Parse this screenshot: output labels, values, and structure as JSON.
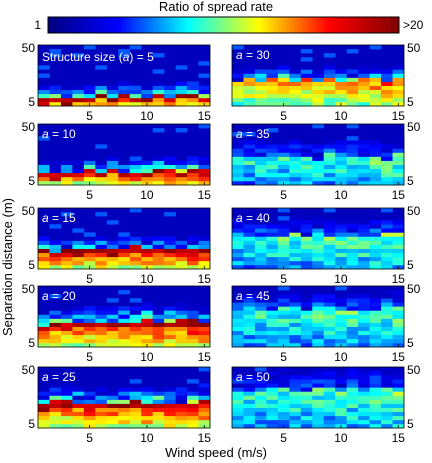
{
  "chart_data": {
    "type": "heatmap",
    "colorbar": {
      "title": "Ratio of spread rate",
      "min_label": "1",
      "max_label": ">20",
      "min": 1,
      "max": 20,
      "colormap": "jet",
      "colors": [
        "#00007f",
        "#0000ff",
        "#00ffff",
        "#ffff00",
        "#ff0000",
        "#7f0000"
      ]
    },
    "xlabel": "Wind speed (m/s)",
    "ylabel": "Separation distance (m)",
    "x_range": [
      0.5,
      15.5
    ],
    "y_range": [
      5,
      50
    ],
    "x_ticks": [
      "5",
      "10",
      "15"
    ],
    "y_ticks": [
      "5",
      "50"
    ],
    "panels": [
      {
        "label_prefix": "Structure size (",
        "label_var": "a",
        "label_suffix": ") = 5",
        "a": 5,
        "ramp": "red",
        "front_rows": 1.6,
        "spread_rows": 3
      },
      {
        "label_prefix": "",
        "label_var": "a",
        "label_suffix": " = 10",
        "a": 10,
        "ramp": "red",
        "front_rows": 2.6,
        "spread_rows": 3
      },
      {
        "label_prefix": "",
        "label_var": "a",
        "label_suffix": " = 15",
        "a": 15,
        "ramp": "red",
        "front_rows": 4.2,
        "spread_rows": 3
      },
      {
        "label_prefix": "",
        "label_var": "a",
        "label_suffix": " = 20",
        "a": 20,
        "ramp": "red",
        "front_rows": 5.2,
        "spread_rows": 4
      },
      {
        "label_prefix": "",
        "label_var": "a",
        "label_suffix": " = 25",
        "a": 25,
        "ramp": "red",
        "front_rows": 5.6,
        "spread_rows": 4
      },
      {
        "label_prefix": "",
        "label_var": "a",
        "label_suffix": " = 30",
        "a": 30,
        "ramp": "yellow",
        "front_rows": 5.6,
        "spread_rows": 3
      },
      {
        "label_prefix": "",
        "label_var": "a",
        "label_suffix": " = 35",
        "a": 35,
        "ramp": "cyan",
        "front_rows": 6,
        "spread_rows": 4
      },
      {
        "label_prefix": "",
        "label_var": "a",
        "label_suffix": " = 40",
        "a": 40,
        "ramp": "cyan",
        "front_rows": 7.6,
        "spread_rows": 4
      },
      {
        "label_prefix": "",
        "label_var": "a",
        "label_suffix": " = 45",
        "a": 45,
        "ramp": "cyan",
        "front_rows": 8.3,
        "spread_rows": 4
      },
      {
        "label_prefix": "",
        "label_var": "a",
        "label_suffix": " = 50",
        "a": 50,
        "ramp": "cyan",
        "front_rows": 8.6,
        "spread_rows": 5
      }
    ]
  }
}
